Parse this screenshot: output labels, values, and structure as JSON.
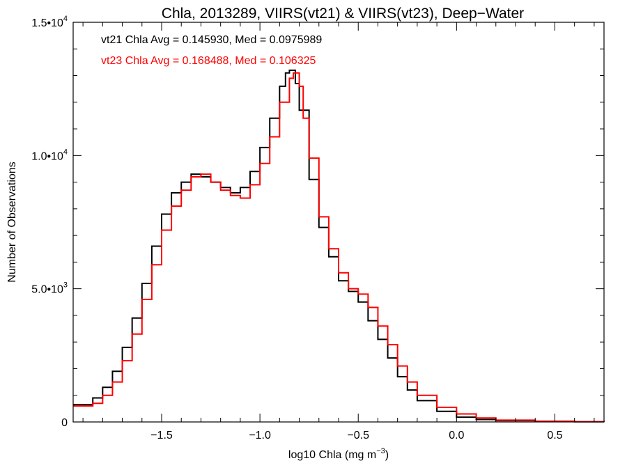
{
  "chart_data": {
    "type": "line",
    "step": true,
    "title": "Chla, 2013289, VIIRS(vt21) & VIIRS(vt23), Deep−Water",
    "xlabel_main": "log10 Chla (mg m",
    "xlabel_sup": "−3",
    "xlabel_close": ")",
    "ylabel": "Number of Observations",
    "xlim": [
      -1.95,
      0.75
    ],
    "ylim": [
      0,
      15000
    ],
    "x_ticks": [
      -1.5,
      -1.0,
      -0.5,
      0.0,
      0.5
    ],
    "x_tick_labels": [
      "−1.5",
      "−1.0",
      "−0.5",
      "0.0",
      "0.5"
    ],
    "y_ticks": [
      0,
      5000,
      10000,
      15000
    ],
    "y_tick_labels": [
      {
        "base": "0",
        "exp": ""
      },
      {
        "base": "5.0•10",
        "exp": "3"
      },
      {
        "base": "1.0•10",
        "exp": "4"
      },
      {
        "base": "1.5•10",
        "exp": "4"
      }
    ],
    "annotations": [
      {
        "text": "vt21 Chla Avg = 0.145930, Med = 0.0975989",
        "color": "#000000"
      },
      {
        "text": "vt23 Chla Avg = 0.168488, Med = 0.106325",
        "color": "#ff0000"
      }
    ],
    "series": [
      {
        "color": "#000000",
        "x": [
          -1.95,
          -1.85,
          -1.8,
          -1.75,
          -1.7,
          -1.65,
          -1.6,
          -1.55,
          -1.5,
          -1.45,
          -1.4,
          -1.35,
          -1.3,
          -1.25,
          -1.2,
          -1.15,
          -1.1,
          -1.05,
          -1.0,
          -0.95,
          -0.9,
          -0.87,
          -0.85,
          -0.82,
          -0.8,
          -0.75,
          -0.7,
          -0.65,
          -0.6,
          -0.55,
          -0.5,
          -0.45,
          -0.4,
          -0.35,
          -0.3,
          -0.25,
          -0.2,
          -0.1,
          0.0,
          0.1,
          0.2,
          0.4,
          0.6,
          0.75
        ],
        "y": [
          650,
          900,
          1300,
          1900,
          2800,
          3900,
          5200,
          6600,
          7800,
          8600,
          9000,
          9300,
          9200,
          9000,
          8800,
          8600,
          8800,
          9400,
          10300,
          11400,
          12600,
          13100,
          13200,
          12700,
          11700,
          9100,
          7300,
          6200,
          5300,
          4900,
          4500,
          3800,
          3100,
          2400,
          1700,
          1200,
          800,
          400,
          180,
          90,
          50,
          20,
          10,
          5
        ]
      },
      {
        "color": "#ff0000",
        "x": [
          -1.95,
          -1.85,
          -1.8,
          -1.75,
          -1.7,
          -1.65,
          -1.6,
          -1.55,
          -1.5,
          -1.45,
          -1.4,
          -1.35,
          -1.3,
          -1.25,
          -1.2,
          -1.15,
          -1.1,
          -1.05,
          -1.0,
          -0.95,
          -0.9,
          -0.85,
          -0.83,
          -0.8,
          -0.78,
          -0.75,
          -0.7,
          -0.65,
          -0.6,
          -0.55,
          -0.5,
          -0.45,
          -0.4,
          -0.35,
          -0.3,
          -0.25,
          -0.2,
          -0.1,
          0.0,
          0.1,
          0.2,
          0.4,
          0.6,
          0.75
        ],
        "y": [
          600,
          700,
          1000,
          1500,
          2300,
          3300,
          4600,
          5900,
          7200,
          8100,
          8700,
          9200,
          9300,
          9000,
          8700,
          8500,
          8400,
          8900,
          9700,
          10700,
          12000,
          12900,
          13100,
          12600,
          11400,
          9900,
          7700,
          6500,
          5600,
          5000,
          4800,
          4300,
          3600,
          2900,
          2100,
          1500,
          1000,
          550,
          300,
          150,
          70,
          30,
          10,
          5
        ]
      }
    ]
  }
}
